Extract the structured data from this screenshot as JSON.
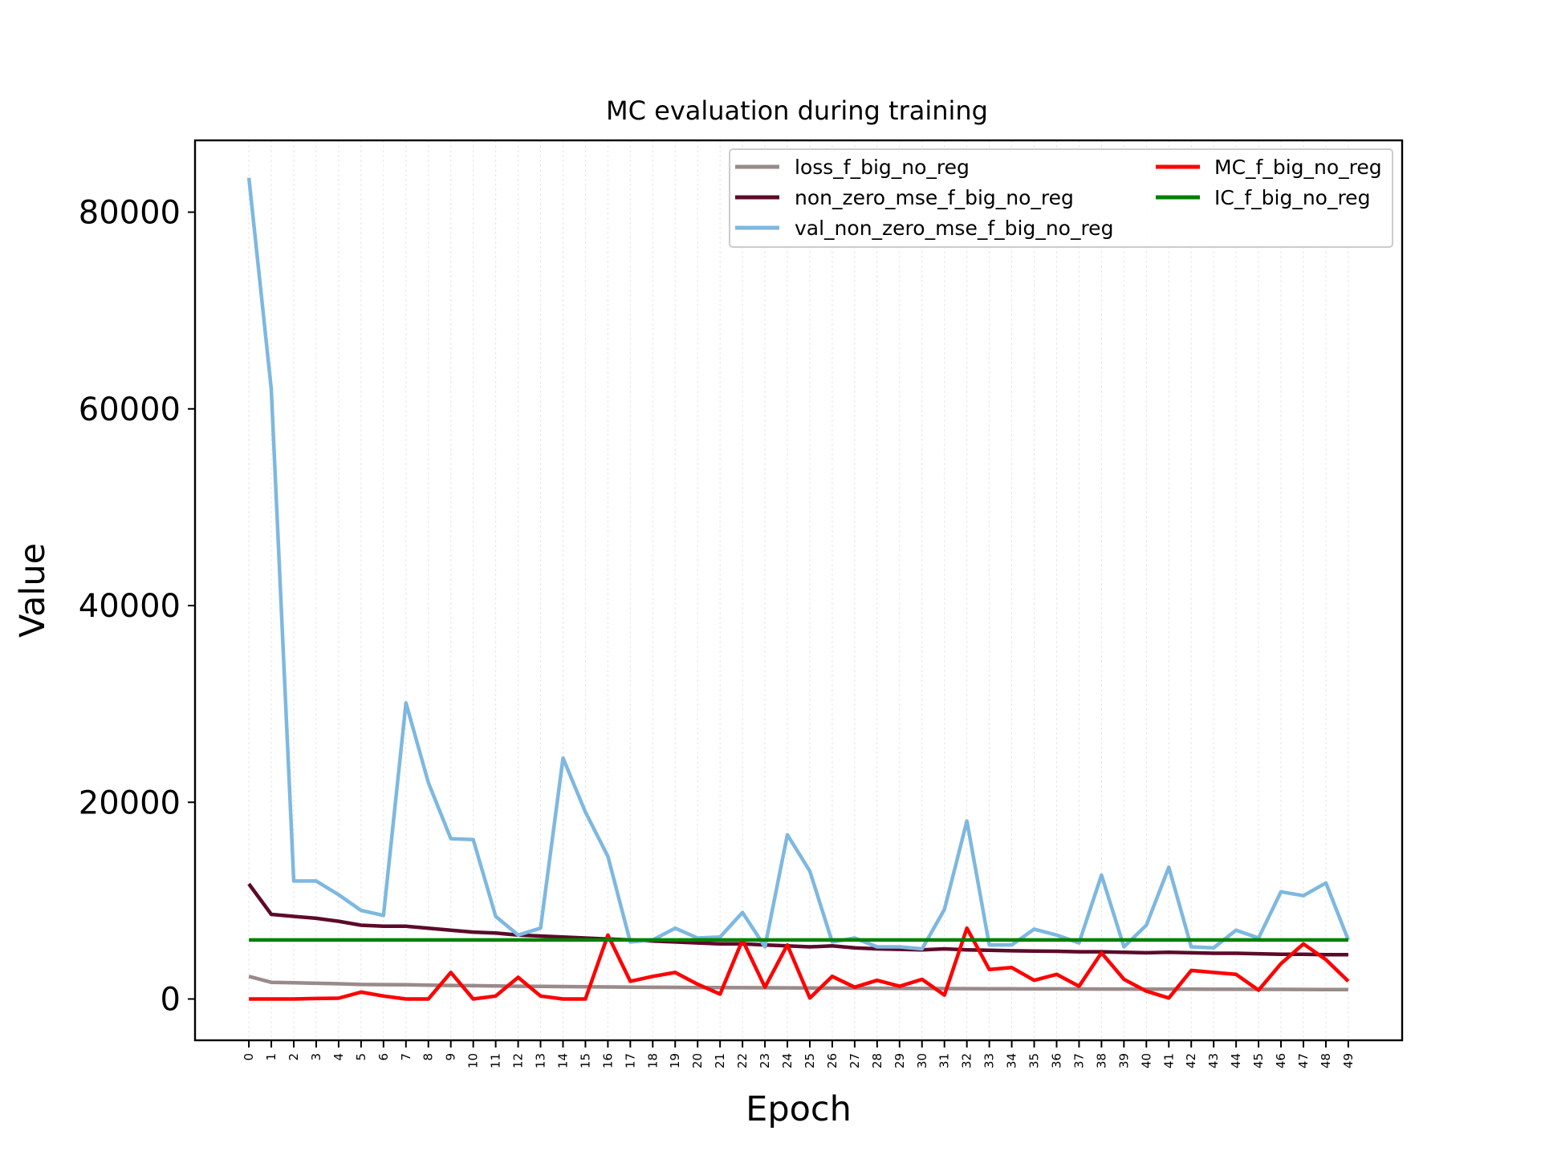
{
  "chart_data": {
    "type": "line",
    "title": "MC evaluation during training",
    "xlabel": "Epoch",
    "ylabel": "Value",
    "x": [
      0,
      1,
      2,
      3,
      4,
      5,
      6,
      7,
      8,
      9,
      10,
      11,
      12,
      13,
      14,
      15,
      16,
      17,
      18,
      19,
      20,
      21,
      22,
      23,
      24,
      25,
      26,
      27,
      28,
      29,
      30,
      31,
      32,
      33,
      34,
      35,
      36,
      37,
      38,
      39,
      40,
      41,
      42,
      43,
      44,
      45,
      46,
      47,
      48,
      49
    ],
    "x_tick_labels": [
      "0",
      "1",
      "2",
      "3",
      "4",
      "5",
      "6",
      "7",
      "8",
      "9",
      "10",
      "11",
      "12",
      "13",
      "14",
      "15",
      "16",
      "17",
      "18",
      "19",
      "20",
      "21",
      "22",
      "23",
      "24",
      "25",
      "26",
      "27",
      "28",
      "29",
      "30",
      "31",
      "32",
      "33",
      "34",
      "35",
      "36",
      "37",
      "38",
      "39",
      "40",
      "41",
      "42",
      "43",
      "44",
      "45",
      "46",
      "47",
      "48",
      "49"
    ],
    "xlim": [
      -2.4,
      51.4
    ],
    "ylim": [
      -4200,
      87300
    ],
    "y_ticks": [
      0,
      20000,
      40000,
      60000,
      80000
    ],
    "y_tick_labels": [
      "0",
      "20000",
      "40000",
      "60000",
      "80000"
    ],
    "grid": "vertical, light",
    "legend_placement": "top-right",
    "series": [
      {
        "name": "loss_f_big_no_reg",
        "color": "#9a8a8a",
        "values": [
          2300,
          1700,
          1650,
          1600,
          1550,
          1480,
          1460,
          1450,
          1400,
          1380,
          1350,
          1320,
          1300,
          1280,
          1260,
          1240,
          1220,
          1200,
          1190,
          1180,
          1170,
          1160,
          1150,
          1140,
          1130,
          1120,
          1110,
          1100,
          1090,
          1080,
          1070,
          1060,
          1050,
          1040,
          1035,
          1030,
          1025,
          1020,
          1015,
          1010,
          1005,
          1000,
          995,
          990,
          985,
          980,
          975,
          970,
          965,
          960
        ]
      },
      {
        "name": "non_zero_mse_f_big_no_reg",
        "color": "#5c0a2a",
        "values": [
          11700,
          8600,
          8400,
          8200,
          7900,
          7500,
          7400,
          7400,
          7200,
          7000,
          6800,
          6700,
          6500,
          6400,
          6300,
          6200,
          6100,
          6000,
          5900,
          5800,
          5700,
          5600,
          5600,
          5500,
          5400,
          5300,
          5400,
          5200,
          5100,
          5050,
          5000,
          5100,
          5000,
          4950,
          4900,
          4880,
          4850,
          4800,
          4800,
          4750,
          4700,
          4750,
          4700,
          4650,
          4650,
          4600,
          4550,
          4550,
          4500,
          4500
        ]
      },
      {
        "name": "val_non_zero_mse_f_big_no_reg",
        "color": "#7db8e0",
        "values": [
          83500,
          62000,
          12000,
          12000,
          10600,
          9000,
          8500,
          30100,
          22000,
          16300,
          16200,
          8400,
          6500,
          7200,
          24500,
          19000,
          14500,
          5800,
          6000,
          7200,
          6200,
          6300,
          8800,
          5300,
          16700,
          13000,
          5800,
          6200,
          5300,
          5300,
          5100,
          9100,
          18100,
          5500,
          5500,
          7100,
          6500,
          5700,
          12600,
          5300,
          7500,
          13400,
          5300,
          5200,
          7000,
          6200,
          10900,
          10500,
          11800,
          6000
        ]
      },
      {
        "name": "MC_f_big_no_reg",
        "color": "#ff0000",
        "values": [
          0,
          0,
          0,
          50,
          80,
          700,
          300,
          0,
          0,
          2700,
          0,
          300,
          2200,
          300,
          0,
          0,
          6500,
          1800,
          2300,
          2700,
          1500,
          500,
          6000,
          1200,
          5500,
          100,
          2300,
          1200,
          1900,
          1300,
          2000,
          400,
          7200,
          3000,
          3200,
          1900,
          2500,
          1300,
          4700,
          2000,
          800,
          100,
          2900,
          2700,
          2500,
          900,
          3600,
          5600,
          4000,
          1800
        ]
      },
      {
        "name": "IC_f_big_no_reg",
        "color": "#008000",
        "values": [
          6000,
          6000,
          6000,
          6000,
          6000,
          6000,
          6000,
          6000,
          6000,
          6000,
          6000,
          6000,
          6000,
          6000,
          6000,
          6000,
          6000,
          6000,
          6000,
          6000,
          6000,
          6000,
          6000,
          6000,
          6000,
          6000,
          6000,
          6000,
          6000,
          6000,
          6000,
          6000,
          6000,
          6000,
          6000,
          6000,
          6000,
          6000,
          6000,
          6000,
          6000,
          6000,
          6000,
          6000,
          6000,
          6000,
          6000,
          6000,
          6000,
          6000
        ]
      }
    ]
  }
}
